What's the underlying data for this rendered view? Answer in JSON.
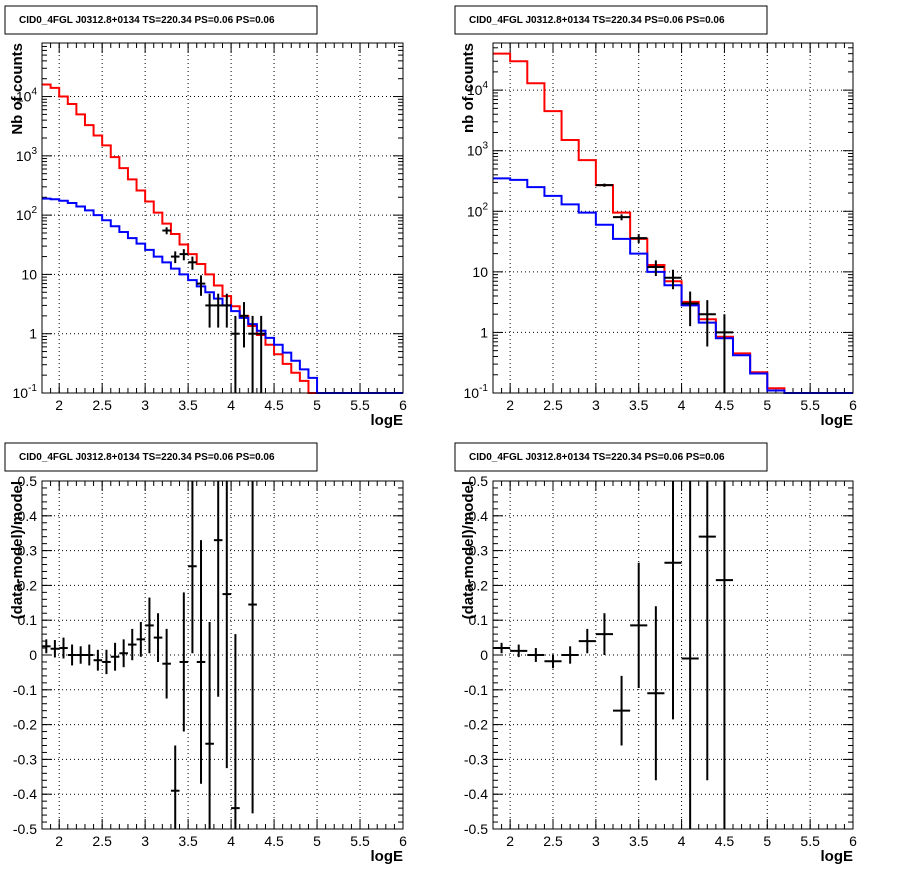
{
  "chart_data": [
    {
      "type": "line",
      "title": "CID0_4FGL J0312.8+0134 TS=220.34 PS=0.06 PS=0.06",
      "xlabel": "logE",
      "ylabel": "Nb of counts",
      "xlim": [
        1.8,
        6
      ],
      "ylim": [
        0.1,
        80000
      ],
      "yscale": "log",
      "grid": true,
      "x_ticks": [
        "2",
        "2.5",
        "3",
        "3.5",
        "4",
        "4.5",
        "5",
        "5.5",
        "6"
      ],
      "y_ticks": [
        "10^-1",
        "1",
        "10",
        "10^2",
        "10^3",
        "10^4"
      ],
      "bin_edges": [
        1.8,
        1.9,
        2.0,
        2.1,
        2.2,
        2.3,
        2.4,
        2.5,
        2.6,
        2.7,
        2.8,
        2.9,
        3.0,
        3.1,
        3.2,
        3.3,
        3.4,
        3.5,
        3.6,
        3.7,
        3.8,
        3.9,
        4.0,
        4.1,
        4.2,
        4.3,
        4.4,
        4.5,
        4.6,
        4.7,
        4.8,
        4.9,
        5.0,
        5.1,
        5.2,
        5.3,
        5.4,
        5.5,
        5.6,
        5.7,
        5.8,
        5.9,
        6.0
      ],
      "series": [
        {
          "color": "#ff0000",
          "values": [
            16000,
            14000,
            10000,
            7500,
            5000,
            3300,
            2200,
            1500,
            950,
            620,
            400,
            260,
            170,
            110,
            72,
            48,
            32,
            22,
            15,
            10,
            6.5,
            4.3,
            2.9,
            2.0,
            1.35,
            0.95,
            0.65,
            0.45,
            0.31,
            0.22,
            0.16,
            0.1,
            0.1,
            0.1,
            0.1,
            0.1,
            0.1,
            0.1,
            0.1,
            0.1,
            0.1,
            0.1
          ]
        },
        {
          "color": "#0000ff",
          "values": [
            190,
            185,
            175,
            160,
            140,
            120,
            100,
            82,
            65,
            52,
            41,
            33,
            26,
            20,
            16,
            12.5,
            10,
            8,
            6.3,
            5,
            3.9,
            3.0,
            2.4,
            1.85,
            1.45,
            1.12,
            0.85,
            0.65,
            0.48,
            0.35,
            0.25,
            0.18,
            0.1,
            0.1,
            0.1,
            0.1,
            0.1,
            0.1,
            0.1,
            0.1,
            0.1,
            0.1
          ]
        }
      ],
      "data_points": {
        "color": "#000000",
        "x": [
          3.25,
          3.35,
          3.45,
          3.55,
          3.65,
          3.75,
          3.85,
          3.95,
          4.05,
          4.15,
          4.25,
          4.35
        ],
        "y": [
          55,
          20,
          22,
          16,
          7,
          3,
          3,
          3,
          1,
          2,
          1,
          1
        ],
        "xerr": 0.05
      }
    },
    {
      "type": "line",
      "title": "CID0_4FGL J0312.8+0134 TS=220.34 PS=0.06 PS=0.06",
      "xlabel": "logE",
      "ylabel": "nb of counts",
      "xlim": [
        1.8,
        6
      ],
      "ylim": [
        0.1,
        60000
      ],
      "yscale": "log",
      "grid": true,
      "x_ticks": [
        "2",
        "2.5",
        "3",
        "3.5",
        "4",
        "4.5",
        "5",
        "5.5",
        "6"
      ],
      "y_ticks": [
        "10^-1",
        "1",
        "10",
        "10^2",
        "10^3",
        "10^4"
      ],
      "bin_edges": [
        1.8,
        2.0,
        2.2,
        2.4,
        2.6,
        2.8,
        3.0,
        3.2,
        3.4,
        3.6,
        3.8,
        4.0,
        4.2,
        4.4,
        4.6,
        4.8,
        5.0,
        5.2,
        5.4,
        5.6,
        5.8,
        6.0
      ],
      "series": [
        {
          "color": "#ff0000",
          "values": [
            40000,
            30000,
            13000,
            4500,
            1500,
            700,
            270,
            95,
            35,
            13,
            7,
            3.2,
            1.65,
            0.85,
            0.45,
            0.22,
            0.12,
            0.1,
            0.1,
            0.1,
            0.1
          ]
        },
        {
          "color": "#0000ff",
          "values": [
            350,
            330,
            250,
            180,
            130,
            95,
            60,
            35,
            20,
            10,
            6,
            2.8,
            1.45,
            0.8,
            0.42,
            0.21,
            0.11,
            0.1,
            0.1,
            0.1,
            0.1
          ]
        }
      ],
      "data_points": {
        "color": "#000000",
        "x": [
          3.1,
          3.3,
          3.5,
          3.7,
          3.9,
          4.1,
          4.3,
          4.5
        ],
        "y": [
          270,
          80,
          36,
          12,
          8,
          3,
          2,
          1
        ],
        "xerr": 0.1
      }
    },
    {
      "type": "scatter",
      "title": "CID0_4FGL J0312.8+0134 TS=220.34 PS=0.06 PS=0.06",
      "xlabel": "logE",
      "ylabel": "(data-model)/model",
      "xlim": [
        1.8,
        6
      ],
      "ylim": [
        -0.5,
        0.5
      ],
      "grid": true,
      "x_ticks": [
        "2",
        "2.5",
        "3",
        "3.5",
        "4",
        "4.5",
        "5",
        "5.5",
        "6"
      ],
      "y_ticks": [
        "-0.5",
        "-0.4",
        "-0.3",
        "-0.2",
        "-0.1",
        "0",
        "0.1",
        "0.2",
        "0.3",
        "0.4",
        "0.5"
      ],
      "points": {
        "x": [
          1.85,
          1.95,
          2.05,
          2.15,
          2.25,
          2.35,
          2.45,
          2.55,
          2.65,
          2.75,
          2.85,
          2.95,
          3.05,
          3.15,
          3.25,
          3.35,
          3.45,
          3.55,
          3.65,
          3.75,
          3.85,
          3.95,
          4.05,
          4.25
        ],
        "y": [
          0.025,
          0.018,
          0.02,
          0.0,
          0.0,
          0.0,
          -0.015,
          -0.02,
          -0.005,
          0.005,
          0.03,
          0.045,
          0.085,
          0.05,
          -0.025,
          -0.39,
          -0.02,
          0.255,
          -0.02,
          -0.255,
          0.33,
          0.175,
          -0.44,
          0.145
        ],
        "yerr": [
          0.02,
          0.025,
          0.03,
          0.03,
          0.025,
          0.03,
          0.03,
          0.035,
          0.04,
          0.04,
          0.045,
          0.05,
          0.08,
          0.07,
          0.1,
          0.13,
          0.2,
          0.25,
          0.35,
          0.35,
          0.45,
          0.5,
          0.5,
          0.6
        ],
        "xerr": 0.05
      }
    },
    {
      "type": "scatter",
      "title": "CID0_4FGL J0312.8+0134 TS=220.34 PS=0.06 PS=0.06",
      "xlabel": "logE",
      "ylabel": "(data-model)/model",
      "xlim": [
        1.8,
        6
      ],
      "ylim": [
        -0.5,
        0.5
      ],
      "grid": true,
      "x_ticks": [
        "2",
        "2.5",
        "3",
        "3.5",
        "4",
        "4.5",
        "5",
        "5.5",
        "6"
      ],
      "y_ticks": [
        "-0.5",
        "-0.4",
        "-0.3",
        "-0.2",
        "-0.1",
        "0",
        "0.1",
        "0.2",
        "0.3",
        "0.4",
        "0.5"
      ],
      "points": {
        "x": [
          1.9,
          2.1,
          2.3,
          2.5,
          2.7,
          2.9,
          3.1,
          3.3,
          3.5,
          3.7,
          3.9,
          4.1,
          4.3,
          4.5
        ],
        "y": [
          0.02,
          0.012,
          0.0,
          -0.018,
          0.0,
          0.04,
          0.06,
          -0.16,
          0.085,
          -0.11,
          0.265,
          -0.01,
          0.34,
          0.215
        ],
        "yerr": [
          0.015,
          0.018,
          0.02,
          0.02,
          0.025,
          0.035,
          0.06,
          0.1,
          0.18,
          0.25,
          0.45,
          0.6,
          0.7,
          0.9
        ],
        "xerr": 0.1
      }
    }
  ]
}
